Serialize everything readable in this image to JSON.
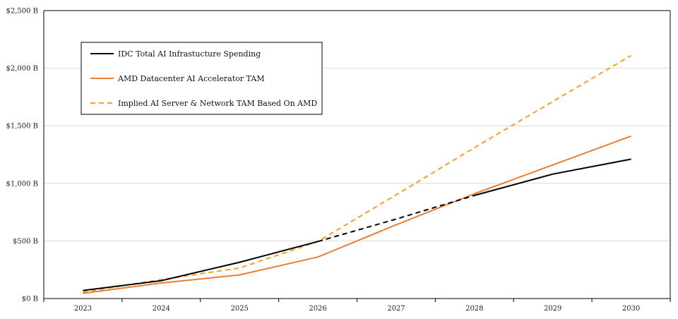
{
  "chart_data": {
    "type": "line",
    "title": "",
    "xlabel": "",
    "ylabel": "",
    "categories": [
      "2023",
      "2024",
      "2025",
      "2026",
      "2027",
      "2028",
      "2029",
      "2030"
    ],
    "ylim": [
      0,
      2500
    ],
    "yticks": [
      0,
      500,
      1000,
      1500,
      2000,
      2500
    ],
    "ytick_labels": [
      "$0 B",
      "$500 B",
      "$1,000 B",
      "$1,500 B",
      "$2,000 B",
      "$2,500 B"
    ],
    "grid": true,
    "legend_position": "top-left",
    "series": [
      {
        "name": "IDC Total AI Infrastucture Spending",
        "color": "#000000",
        "style": "solid",
        "dashed_from_index": 3,
        "values": [
          70,
          155,
          315,
          495,
          690,
          895,
          1080,
          1210
        ]
      },
      {
        "name": "AMD Datacenter AI Accelerator TAM",
        "color": "#ED7D31",
        "style": "solid",
        "values": [
          45,
          135,
          205,
          360,
          640,
          910,
          1160,
          1410
        ]
      },
      {
        "name": "Implied AI Server & Network TAM Based On AMD",
        "color": "#F4A020",
        "style": "dashed",
        "values": [
          55,
          165,
          265,
          495,
          900,
          1310,
          1710,
          2110
        ]
      }
    ]
  }
}
